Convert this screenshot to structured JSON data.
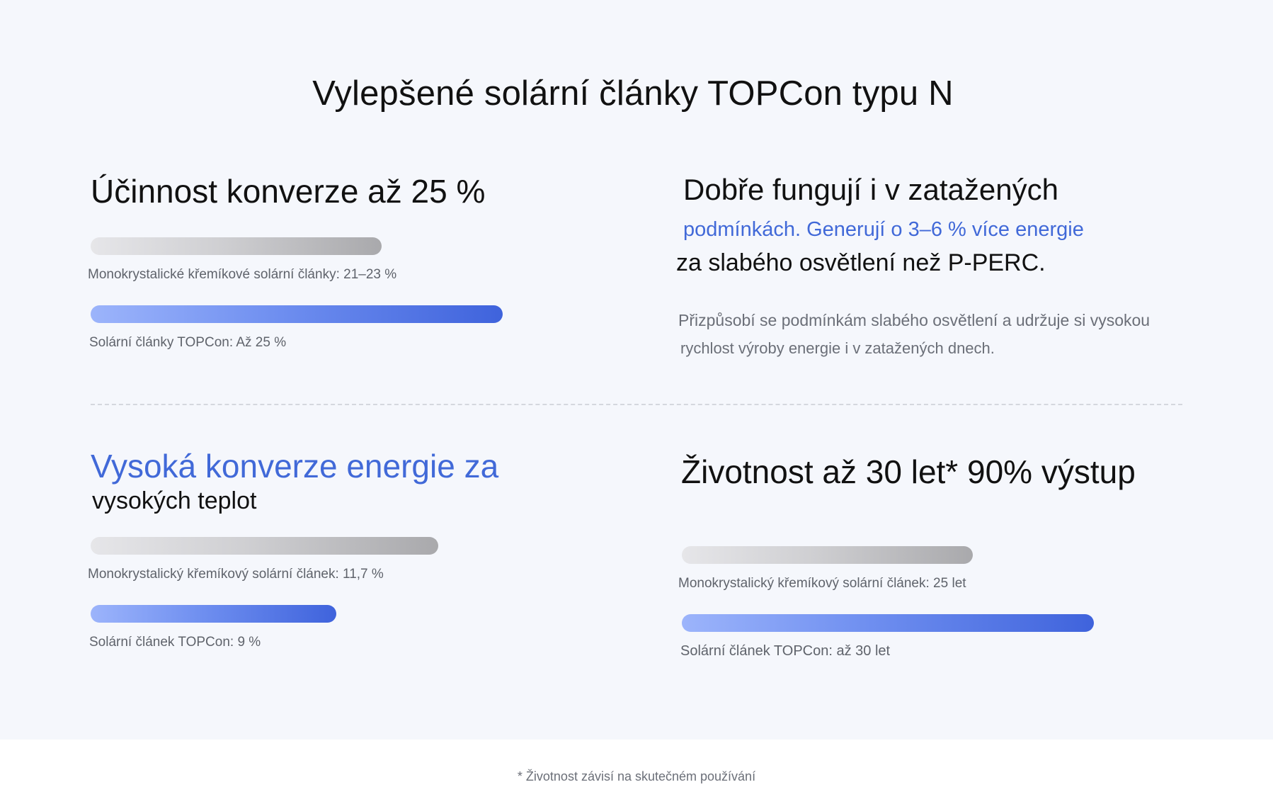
{
  "page": {
    "title": "Vylepšené solární články TOPCon typu N",
    "footnote": "* Životnost závisí na skutečném používání"
  },
  "efficiency": {
    "heading": "Účinnost konverze až 25 %",
    "bars": [
      {
        "label": "Monokrystalické křemíkové solární články: 21–23 %",
        "value_percent": 23,
        "color": "gray"
      },
      {
        "label": "Solární články TOPCon: Až 25 %",
        "value_percent": 25,
        "color": "blue"
      }
    ]
  },
  "low_light": {
    "heading_line1": "Dobře fungují i v zatažených",
    "heading_line2": "podmínkách. Generují o 3–6 % více energie",
    "heading_line3": "za slabého osvětlení než P-PERC.",
    "desc_line1": "Přizpůsobí se podmínkám slabého osvětlení a udržuje si vysokou",
    "desc_line2": "rychlost výroby energie i v zatažených dnech."
  },
  "temperature": {
    "heading_line1": "Vysoká konverze energie za",
    "heading_line2": "vysokých teplot",
    "bars": [
      {
        "label": "Monokrystalický křemíkový solární článek: 11,7 %",
        "value_percent": 11.7,
        "color": "gray"
      },
      {
        "label": "Solární článek TOPCon: 9 %",
        "value_percent": 9,
        "color": "blue"
      }
    ]
  },
  "lifetime": {
    "heading": "Životnost až 30 let* 90% výstup",
    "bars": [
      {
        "label": "Monokrystalický křemíkový solární článek: 25 let",
        "value_years": 25,
        "color": "gray"
      },
      {
        "label": "Solární článek TOPCon: až 30 let",
        "value_years": 30,
        "color": "blue"
      }
    ]
  },
  "colors": {
    "accent_blue": "#4169d8",
    "background": "#f5f7fc",
    "text_dark": "#111111",
    "text_muted": "#6b6f78"
  }
}
